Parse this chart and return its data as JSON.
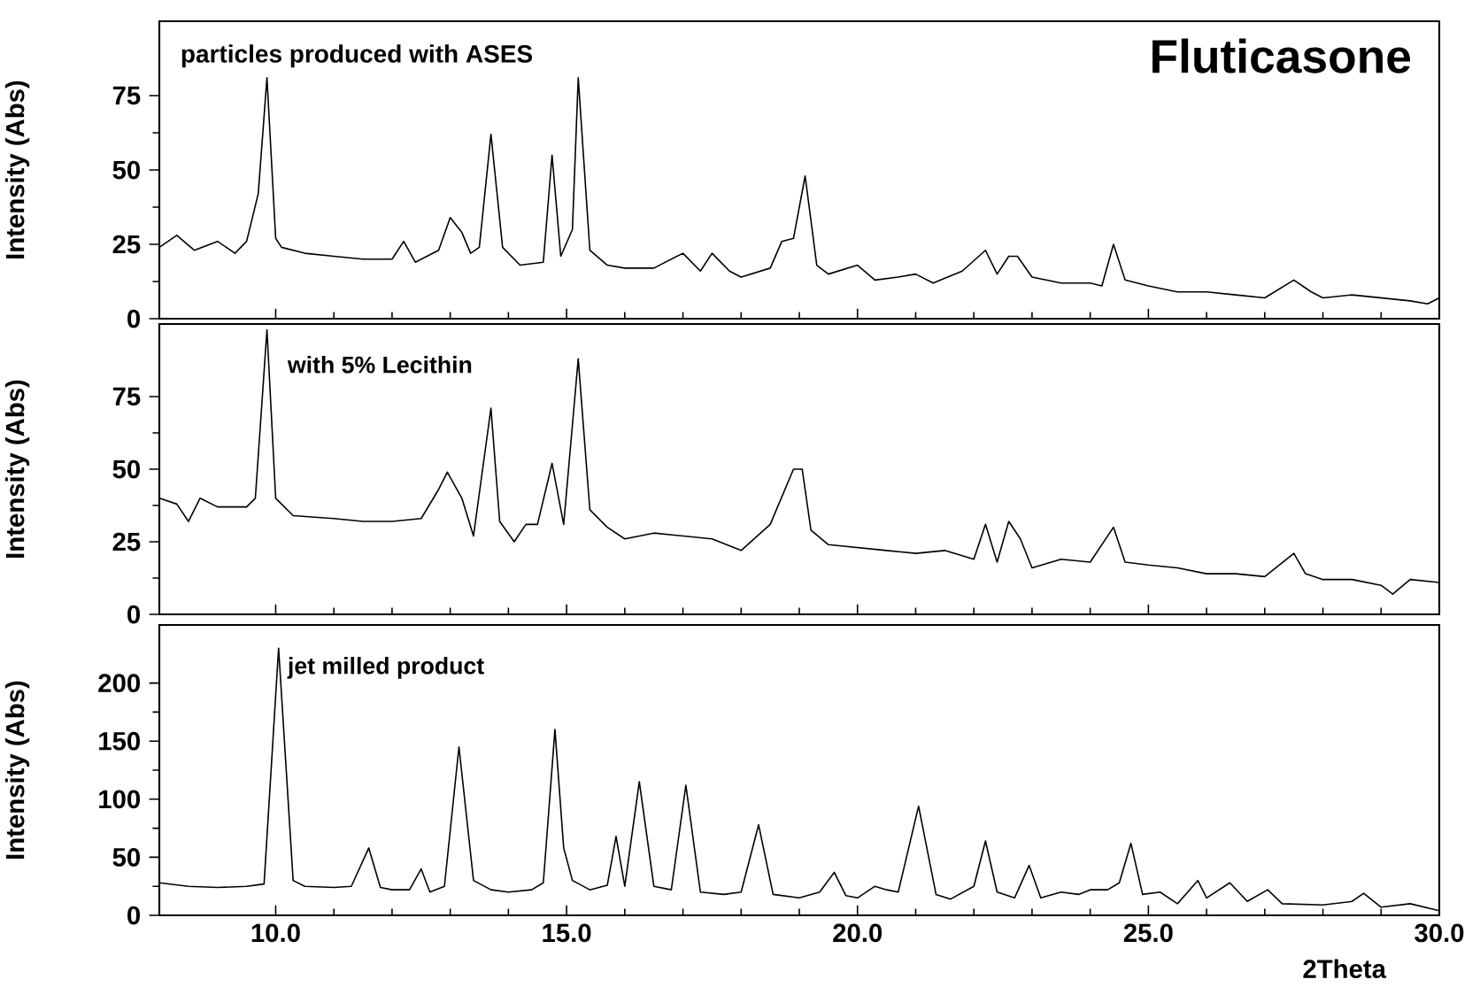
{
  "chart_data": [
    {
      "type": "line",
      "title": "Fluticasone",
      "subtitle": "particles produced with ASES",
      "ylabel": "Intensity (Abs)",
      "tick_labels": "y",
      "xlim": [
        8,
        30
      ],
      "xticks": [
        10,
        15,
        20,
        25,
        30
      ],
      "ylim": [
        0,
        100
      ],
      "yticks": [
        0,
        25,
        50,
        75
      ],
      "series": [
        {
          "color": "#000000",
          "x": [
            8.0,
            8.3,
            8.6,
            9.0,
            9.3,
            9.5,
            9.7,
            9.85,
            10.0,
            10.1,
            10.5,
            11.0,
            11.5,
            12.0,
            12.2,
            12.4,
            12.8,
            13.0,
            13.2,
            13.35,
            13.5,
            13.7,
            13.9,
            14.2,
            14.6,
            14.75,
            14.9,
            15.1,
            15.2,
            15.4,
            15.7,
            16.0,
            16.5,
            17.0,
            17.3,
            17.5,
            17.8,
            18.0,
            18.5,
            18.7,
            18.9,
            19.1,
            19.3,
            19.5,
            20.0,
            20.3,
            20.7,
            21.0,
            21.3,
            21.8,
            22.2,
            22.4,
            22.6,
            22.75,
            23.0,
            23.5,
            24.0,
            24.2,
            24.4,
            24.6,
            25.0,
            25.5,
            26.0,
            26.5,
            27.0,
            27.5,
            27.8,
            28.0,
            28.5,
            29.0,
            29.5,
            29.8,
            30.0
          ],
          "values": [
            24,
            28,
            23,
            26,
            22,
            26,
            42,
            81,
            27,
            24,
            22,
            21,
            20,
            20,
            26,
            19,
            23,
            34,
            29,
            22,
            24,
            62,
            24,
            18,
            19,
            55,
            21,
            30,
            81,
            23,
            18,
            17,
            17,
            22,
            16,
            22,
            16,
            14,
            17,
            26,
            27,
            48,
            18,
            15,
            18,
            13,
            14,
            15,
            12,
            16,
            23,
            15,
            21,
            21,
            14,
            12,
            12,
            11,
            25,
            13,
            11,
            9,
            9,
            8,
            7,
            13,
            9,
            7,
            8,
            7,
            6,
            5,
            7
          ]
        }
      ]
    },
    {
      "type": "line",
      "title": "with 5% Lecithin",
      "ylabel": "Intensity (Abs)",
      "tick_labels": "y",
      "xlim": [
        8,
        30
      ],
      "xticks": [
        10,
        15,
        20,
        25,
        30
      ],
      "ylim": [
        0,
        100
      ],
      "yticks": [
        0,
        25,
        50,
        75
      ],
      "series": [
        {
          "color": "#000000",
          "x": [
            8.0,
            8.3,
            8.5,
            8.7,
            9.0,
            9.5,
            9.65,
            9.85,
            10.0,
            10.3,
            11.0,
            11.5,
            12.0,
            12.5,
            12.8,
            12.95,
            13.2,
            13.4,
            13.7,
            13.85,
            14.1,
            14.3,
            14.5,
            14.75,
            14.95,
            15.2,
            15.4,
            15.7,
            16.0,
            16.5,
            17.0,
            17.5,
            18.0,
            18.5,
            18.9,
            19.05,
            19.2,
            19.5,
            20.0,
            20.5,
            21.0,
            21.5,
            22.0,
            22.2,
            22.4,
            22.6,
            22.8,
            23.0,
            23.5,
            24.0,
            24.4,
            24.6,
            25.0,
            25.5,
            26.0,
            26.5,
            27.0,
            27.5,
            27.7,
            28.0,
            28.5,
            29.0,
            29.2,
            29.5,
            30.0
          ],
          "values": [
            40,
            38,
            32,
            40,
            37,
            37,
            40,
            98,
            40,
            34,
            33,
            32,
            32,
            33,
            43,
            49,
            40,
            27,
            71,
            32,
            25,
            31,
            31,
            52,
            31,
            88,
            36,
            30,
            26,
            28,
            27,
            26,
            22,
            31,
            50,
            50,
            29,
            24,
            23,
            22,
            21,
            22,
            19,
            31,
            18,
            32,
            26,
            16,
            19,
            18,
            30,
            18,
            17,
            16,
            14,
            14,
            13,
            21,
            14,
            12,
            12,
            10,
            7,
            12,
            11
          ]
        }
      ]
    },
    {
      "type": "line",
      "title": "jet milled product",
      "ylabel": "Intensity (Abs)",
      "xlabel": "2Theta",
      "xlim": [
        8,
        30
      ],
      "xticks": [
        {
          "value": 10,
          "label": "10.0"
        },
        {
          "value": 15,
          "label": "15.0"
        },
        {
          "value": 20,
          "label": "20.0"
        },
        {
          "value": 25,
          "label": "25.0"
        },
        {
          "value": 30,
          "label": "30.0"
        }
      ],
      "ylim": [
        0,
        250
      ],
      "yticks": [
        0,
        50,
        100,
        150,
        200
      ],
      "series": [
        {
          "color": "#000000",
          "x": [
            8.0,
            8.5,
            9.0,
            9.5,
            9.8,
            10.05,
            10.3,
            10.5,
            11.0,
            11.3,
            11.6,
            11.8,
            12.0,
            12.3,
            12.5,
            12.65,
            12.9,
            13.15,
            13.4,
            13.7,
            14.0,
            14.4,
            14.6,
            14.8,
            14.95,
            15.1,
            15.4,
            15.7,
            15.85,
            16.0,
            16.25,
            16.5,
            16.8,
            17.05,
            17.3,
            17.7,
            18.0,
            18.3,
            18.55,
            19.0,
            19.35,
            19.6,
            19.8,
            20.0,
            20.3,
            20.5,
            20.7,
            21.05,
            21.35,
            21.6,
            22.0,
            22.2,
            22.4,
            22.7,
            22.95,
            23.15,
            23.5,
            23.8,
            24.0,
            24.3,
            24.5,
            24.7,
            24.9,
            25.2,
            25.5,
            25.85,
            26.0,
            26.4,
            26.7,
            27.05,
            27.3,
            28.0,
            28.5,
            28.7,
            29.0,
            29.5,
            30.0
          ],
          "values": [
            28,
            25,
            24,
            25,
            27,
            230,
            30,
            25,
            24,
            25,
            58,
            24,
            22,
            22,
            40,
            20,
            25,
            145,
            30,
            22,
            20,
            22,
            28,
            160,
            58,
            30,
            22,
            26,
            68,
            25,
            115,
            25,
            22,
            112,
            20,
            18,
            20,
            78,
            18,
            15,
            20,
            37,
            17,
            15,
            25,
            22,
            20,
            94,
            18,
            14,
            25,
            64,
            20,
            15,
            43,
            15,
            20,
            18,
            22,
            22,
            28,
            62,
            18,
            20,
            10,
            30,
            15,
            28,
            12,
            22,
            10,
            9,
            12,
            19,
            7,
            10,
            4
          ]
        }
      ]
    }
  ]
}
